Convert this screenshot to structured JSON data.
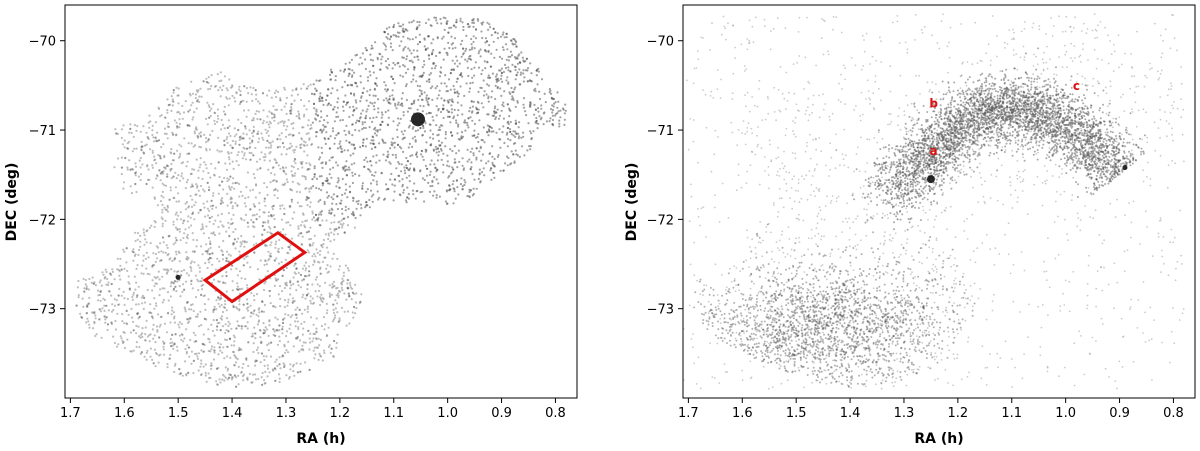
{
  "chart_data": [
    {
      "type": "scatter",
      "panel": "left",
      "title": "",
      "xlabel": "RA (h)",
      "ylabel": "DEC (deg)",
      "xlim": [
        1.71,
        0.76
      ],
      "ylim": [
        -74.0,
        -69.6
      ],
      "x_ticks": [
        1.7,
        1.6,
        1.5,
        1.4,
        1.3,
        1.2,
        1.1,
        1.0,
        0.9,
        0.8
      ],
      "x_tick_labels": [
        "1.7",
        "1.6",
        "1.5",
        "1.4",
        "1.3",
        "1.2",
        "1.1",
        "1.0",
        "0.9",
        "0.8"
      ],
      "y_ticks": [
        -70,
        -71,
        -72,
        -73
      ],
      "y_tick_labels": [
        "−70",
        "−71",
        "−72",
        "−73"
      ],
      "grid": false,
      "point_color": "#555555",
      "density": "high",
      "hotspots": [
        {
          "x": 1.055,
          "y": -70.88,
          "strength": "very-strong"
        },
        {
          "x": 1.5,
          "y": -72.65,
          "strength": "weak"
        }
      ],
      "overlay_polygon": {
        "color": "#e01010",
        "vertices": [
          [
            1.45,
            -72.68
          ],
          [
            1.315,
            -72.15
          ],
          [
            1.265,
            -72.37
          ],
          [
            1.4,
            -72.92
          ]
        ]
      }
    },
    {
      "type": "scatter",
      "panel": "right",
      "title": "",
      "xlabel": "RA (h)",
      "ylabel": "DEC (deg)",
      "xlim": [
        1.71,
        0.76
      ],
      "ylim": [
        -74.0,
        -69.6
      ],
      "x_ticks": [
        1.7,
        1.6,
        1.5,
        1.4,
        1.3,
        1.2,
        1.1,
        1.0,
        0.9,
        0.8
      ],
      "x_tick_labels": [
        "1.7",
        "1.6",
        "1.5",
        "1.4",
        "1.3",
        "1.2",
        "1.1",
        "1.0",
        "0.9",
        "0.8"
      ],
      "y_ticks": [
        -70,
        -71,
        -72,
        -73
      ],
      "y_tick_labels": [
        "−70",
        "−71",
        "−72",
        "−73"
      ],
      "grid": false,
      "point_color": "#555555",
      "density": "sparse",
      "hotspots": [
        {
          "x": 1.25,
          "y": -71.55,
          "strength": "strong"
        },
        {
          "x": 0.89,
          "y": -71.42,
          "strength": "weak"
        }
      ],
      "annotations": [
        {
          "text": "a",
          "x": 1.245,
          "y": -71.28,
          "color": "#e01010"
        },
        {
          "text": "b",
          "x": 1.245,
          "y": -70.75,
          "color": "#e01010"
        },
        {
          "text": "c",
          "x": 0.98,
          "y": -70.55,
          "color": "#e01010"
        }
      ]
    }
  ]
}
